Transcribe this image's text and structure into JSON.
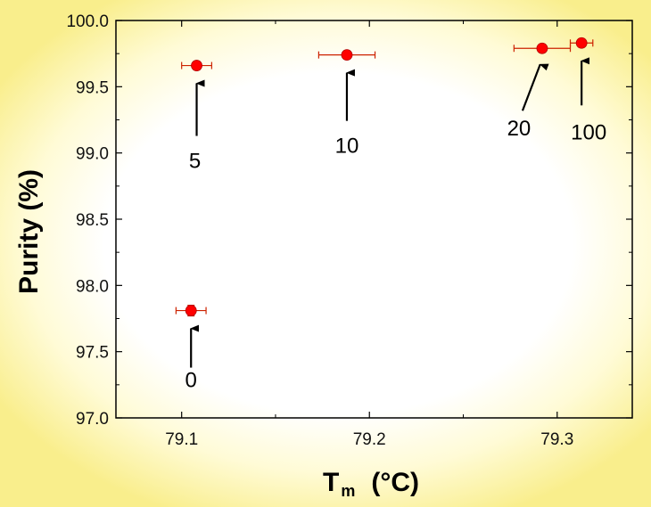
{
  "chart_data": {
    "type": "scatter",
    "xlabel": "T",
    "xlabel_sub": "m",
    "xlabel_unit": "(°C)",
    "ylabel": "Purity  (%)",
    "xlim": [
      79.065,
      79.34
    ],
    "ylim": [
      97.0,
      100.0
    ],
    "x_ticks": [
      "79.1",
      "79.2",
      "79.3"
    ],
    "y_ticks": [
      "97.0",
      "97.5",
      "98.0",
      "98.5",
      "99.0",
      "99.5",
      "100.0"
    ],
    "grid": false,
    "marker_color": "#ff0000",
    "errorbar_color": "#cc2200",
    "points": [
      {
        "label": "0",
        "x": 79.105,
        "y": 97.81,
        "xerr": 0.008,
        "yerr": 0.04
      },
      {
        "label": "5",
        "x": 79.108,
        "y": 99.66,
        "xerr": 0.008,
        "yerr": 0.0
      },
      {
        "label": "10",
        "x": 79.188,
        "y": 99.74,
        "xerr": 0.015,
        "yerr": 0.0
      },
      {
        "label": "20",
        "x": 79.292,
        "y": 99.79,
        "xerr": 0.015,
        "yerr": 0.0
      },
      {
        "label": "100",
        "x": 79.313,
        "y": 99.83,
        "xerr": 0.006,
        "yerr": 0.0
      }
    ]
  }
}
